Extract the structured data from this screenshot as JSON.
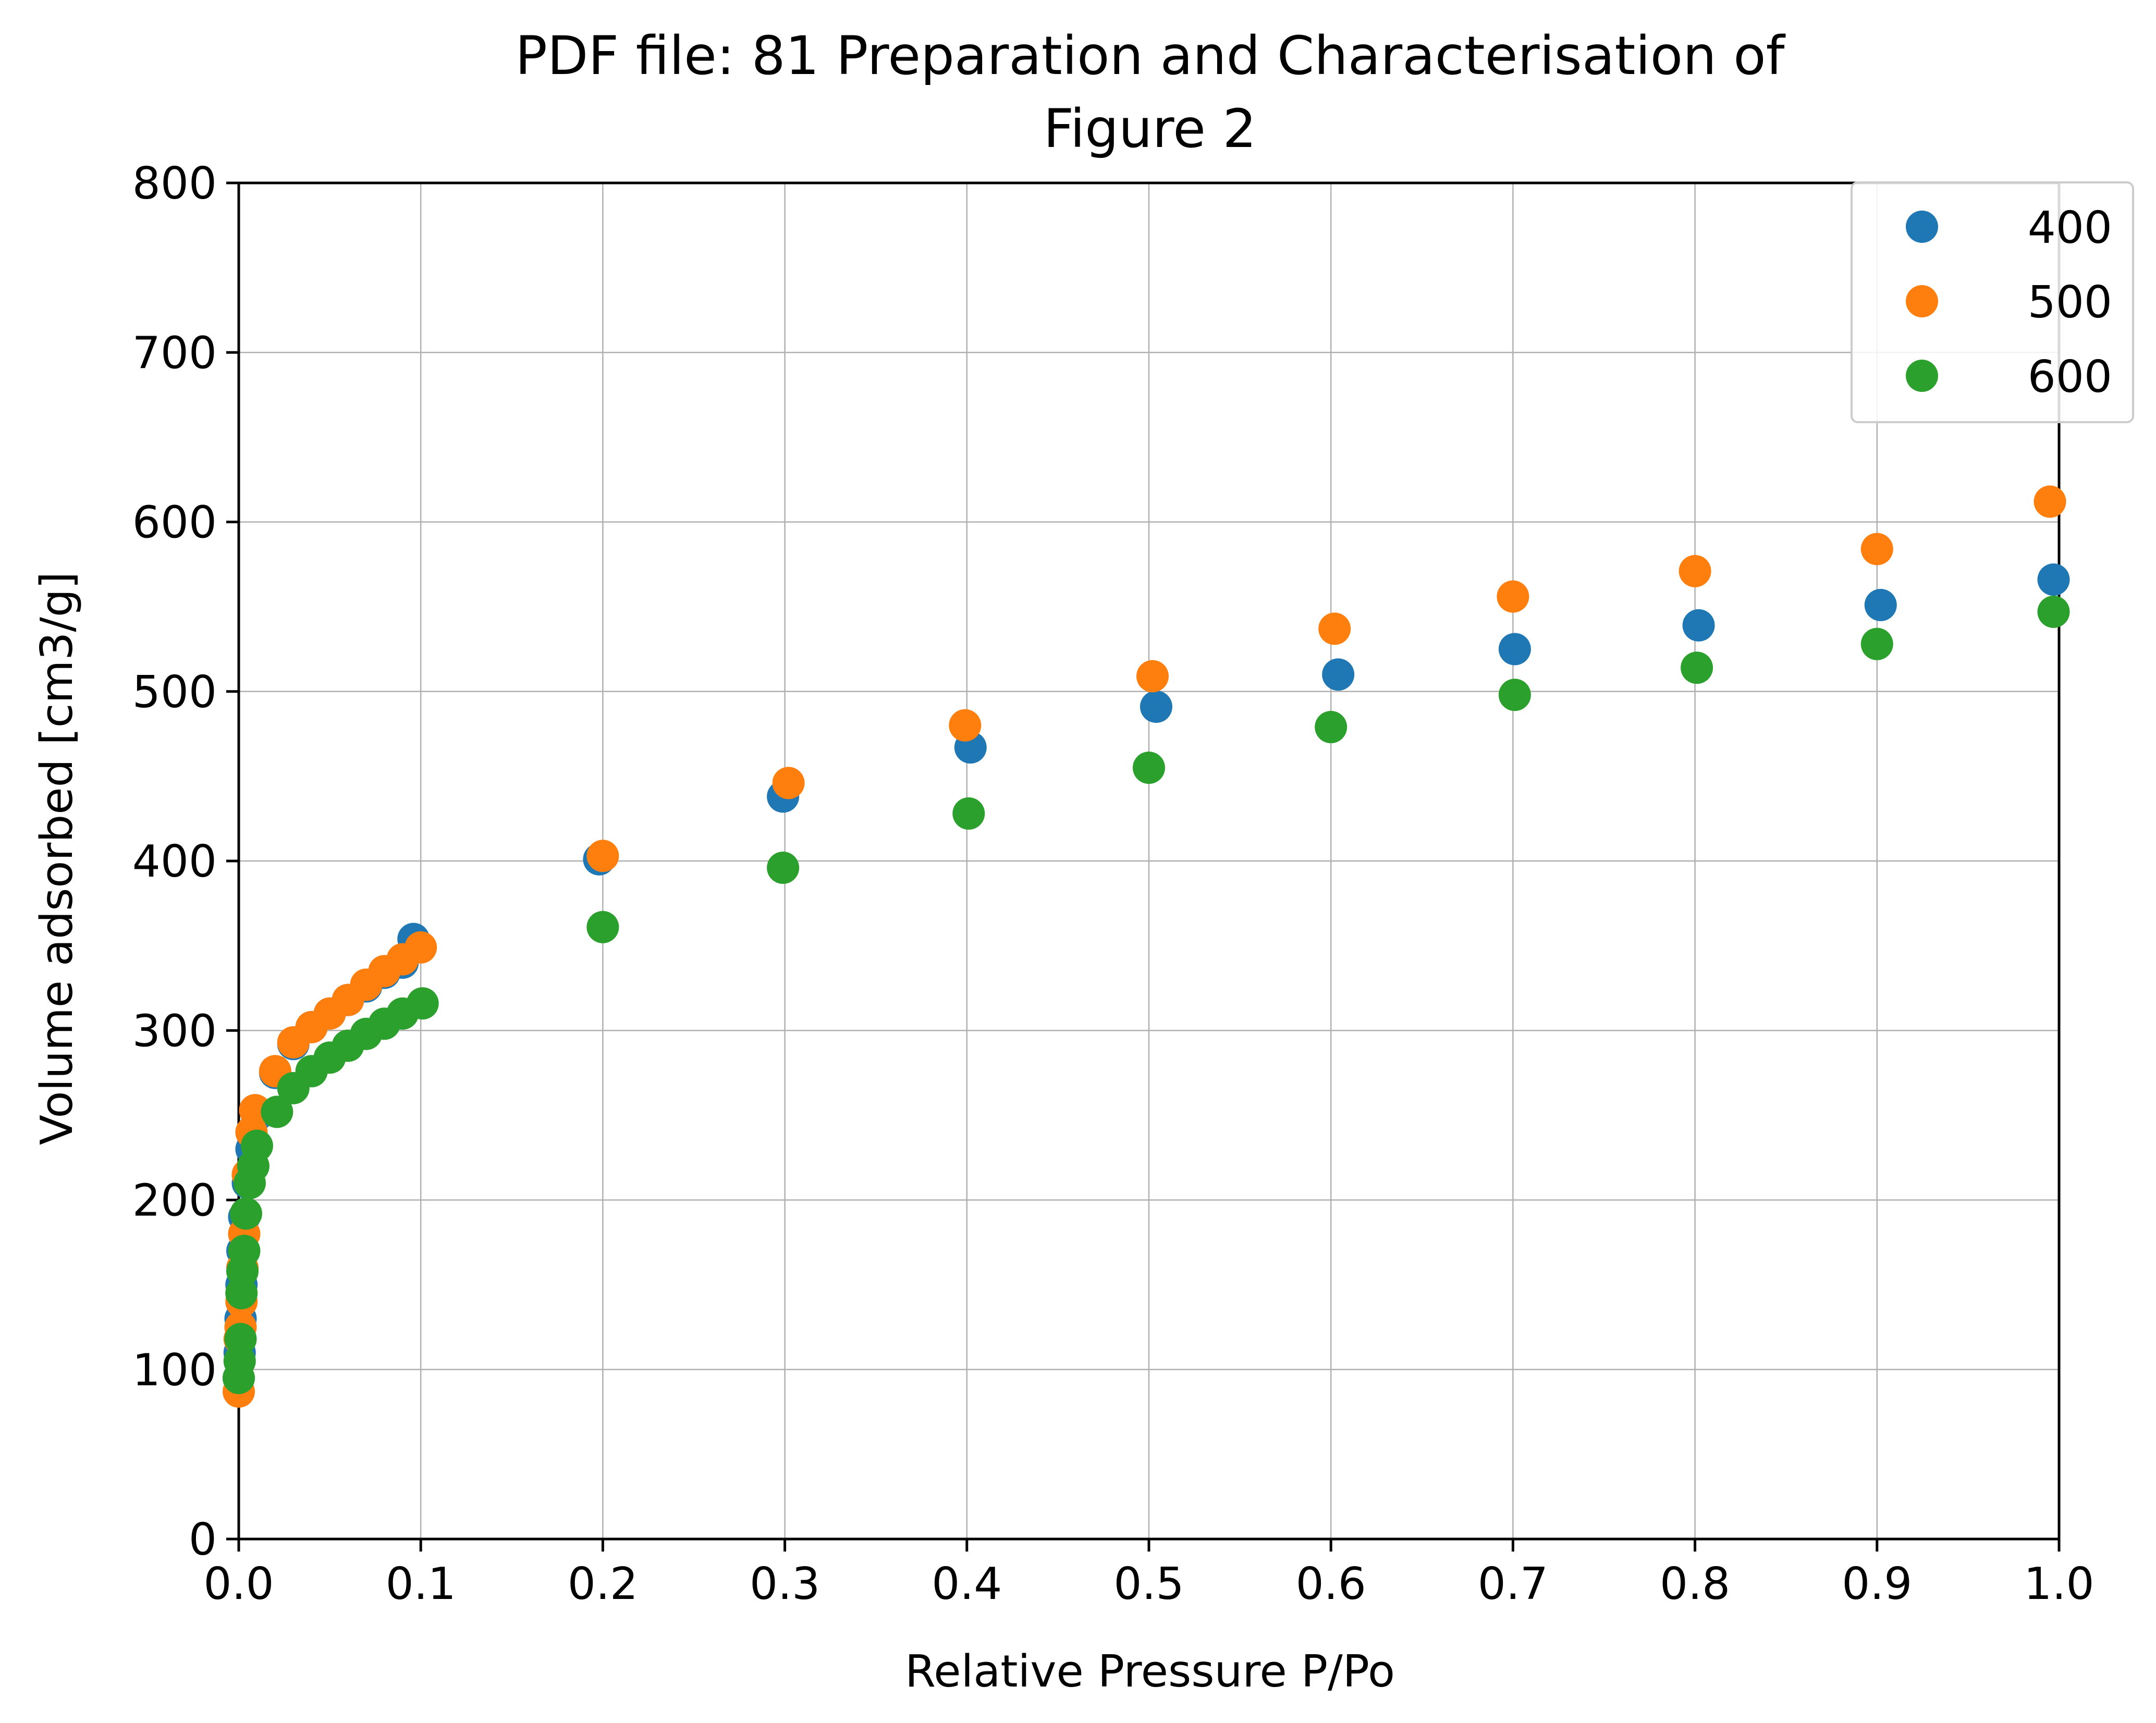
{
  "chart_data": {
    "type": "scatter",
    "title_line1": "PDF file: 81 Preparation and Characterisation of",
    "title_line2": "Figure 2",
    "xlabel": "Relative Pressure P/Po",
    "ylabel": "Volume adsorbed [cm3/g]",
    "xlim": [
      0,
      1
    ],
    "ylim": [
      0,
      800
    ],
    "xticks": [
      0.0,
      0.1,
      0.2,
      0.3,
      0.4,
      0.5,
      0.6,
      0.7,
      0.8,
      0.9,
      1.0
    ],
    "xtick_labels": [
      "0.0",
      "0.1",
      "0.2",
      "0.3",
      "0.4",
      "0.5",
      "0.6",
      "0.7",
      "0.8",
      "0.9",
      "1.0"
    ],
    "yticks": [
      0,
      100,
      200,
      300,
      400,
      500,
      600,
      700,
      800
    ],
    "ytick_labels": [
      "0",
      "100",
      "200",
      "300",
      "400",
      "500",
      "600",
      "700",
      "800"
    ],
    "grid": true,
    "legend_position": "top-right",
    "series": [
      {
        "name": "400",
        "color": "#1f77b4",
        "points": [
          [
            0.0,
            95
          ],
          [
            0.0005,
            110
          ],
          [
            0.001,
            130
          ],
          [
            0.0015,
            150
          ],
          [
            0.002,
            170
          ],
          [
            0.003,
            190
          ],
          [
            0.005,
            210
          ],
          [
            0.007,
            230
          ],
          [
            0.01,
            250
          ],
          [
            0.02,
            275
          ],
          [
            0.03,
            292
          ],
          [
            0.04,
            302
          ],
          [
            0.05,
            310
          ],
          [
            0.06,
            318
          ],
          [
            0.07,
            326
          ],
          [
            0.08,
            334
          ],
          [
            0.09,
            340
          ],
          [
            0.096,
            354
          ],
          [
            0.198,
            401
          ],
          [
            0.299,
            438
          ],
          [
            0.402,
            467
          ],
          [
            0.504,
            491
          ],
          [
            0.604,
            510
          ],
          [
            0.701,
            525
          ],
          [
            0.802,
            539
          ],
          [
            0.902,
            551
          ],
          [
            0.997,
            566
          ]
        ]
      },
      {
        "name": "500",
        "color": "#ff7f0e",
        "points": [
          [
            0.0,
            87
          ],
          [
            0.0005,
            118
          ],
          [
            0.001,
            125
          ],
          [
            0.0015,
            140
          ],
          [
            0.002,
            160
          ],
          [
            0.003,
            180
          ],
          [
            0.005,
            215
          ],
          [
            0.007,
            240
          ],
          [
            0.009,
            253
          ],
          [
            0.02,
            276
          ],
          [
            0.03,
            293
          ],
          [
            0.04,
            302
          ],
          [
            0.05,
            310
          ],
          [
            0.06,
            318
          ],
          [
            0.07,
            327
          ],
          [
            0.08,
            335
          ],
          [
            0.09,
            342
          ],
          [
            0.1,
            349
          ],
          [
            0.2,
            403
          ],
          [
            0.302,
            446
          ],
          [
            0.399,
            480
          ],
          [
            0.502,
            509
          ],
          [
            0.602,
            537
          ],
          [
            0.7,
            556
          ],
          [
            0.8,
            571
          ],
          [
            0.9,
            584
          ],
          [
            0.995,
            612
          ]
        ]
      },
      {
        "name": "600",
        "color": "#2ca02c",
        "points": [
          [
            0.0,
            95
          ],
          [
            0.0005,
            105
          ],
          [
            0.001,
            118
          ],
          [
            0.0015,
            145
          ],
          [
            0.002,
            158
          ],
          [
            0.003,
            170
          ],
          [
            0.004,
            192
          ],
          [
            0.006,
            210
          ],
          [
            0.008,
            220
          ],
          [
            0.01,
            232
          ],
          [
            0.021,
            252
          ],
          [
            0.03,
            266
          ],
          [
            0.04,
            276
          ],
          [
            0.05,
            284
          ],
          [
            0.06,
            291
          ],
          [
            0.07,
            298
          ],
          [
            0.08,
            304
          ],
          [
            0.09,
            310
          ],
          [
            0.101,
            316
          ],
          [
            0.2,
            361
          ],
          [
            0.299,
            396
          ],
          [
            0.401,
            428
          ],
          [
            0.5,
            455
          ],
          [
            0.6,
            479
          ],
          [
            0.701,
            498
          ],
          [
            0.801,
            514
          ],
          [
            0.9,
            528
          ],
          [
            0.997,
            547
          ]
        ]
      }
    ]
  }
}
